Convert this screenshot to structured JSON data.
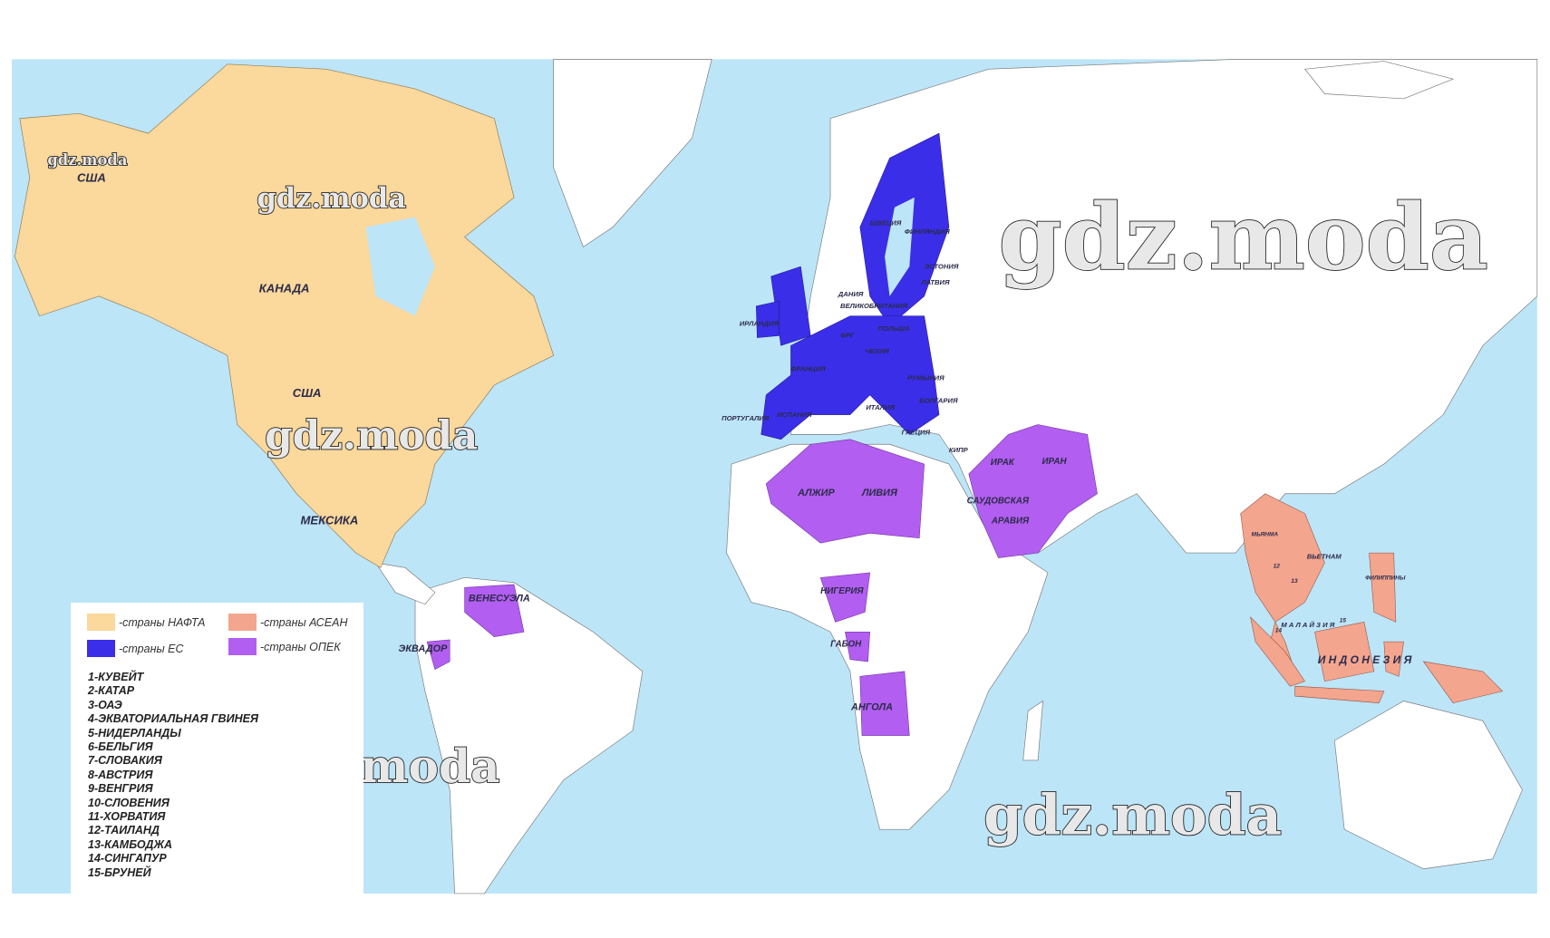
{
  "map": {
    "colors": {
      "sea": "#bde5f8",
      "land": "#ffffff",
      "nafta": "#fbd89b",
      "eu": "#3a2ee8",
      "asean": "#f4a58e",
      "opec": "#b25ef0"
    },
    "labels": {
      "usa_alaska": "США",
      "canada": "КАНАДА",
      "usa": "США",
      "mexico": "МЕКСИКА",
      "venezuela": "ВЕНЕСУЭЛА",
      "ecuador": "ЭКВАДОР",
      "algeria": "АЛЖИР",
      "libya": "ЛИВИЯ",
      "nigeria": "НИГЕРИЯ",
      "gabon": "ГАБОН",
      "angola": "АНГОЛА",
      "iraq": "ИРАК",
      "iran": "ИРАН",
      "saudi_1": "САУДОВСКАЯ",
      "saudi_2": "АРАВИЯ",
      "indonesia": "И Н Д О Н Е З И Я",
      "malaysia": "М А Л А Й З И Я",
      "vietnam": "ВЬЕТНАМ",
      "myanmar": "МЬЯНМА",
      "philippines": "ФИЛИППИНЫ",
      "n12": "12",
      "n13": "13",
      "n14": "14",
      "n15": "15",
      "uk": "ВЕЛИКОБРИТАНИЯ",
      "ireland": "ИРЛАНДИЯ",
      "portugal": "ПОРТУГАЛИЯ",
      "spain": "ИСПАНИЯ",
      "france": "ФРАНЦИЯ",
      "germany": "ФРГ",
      "poland": "ПОЛЬША",
      "czech": "ЧЕХИЯ",
      "romania": "РУМЫНИЯ",
      "bulgaria": "БОЛГАРИЯ",
      "greece": "ГРЕЦИЯ",
      "italy": "ИТАЛИЯ",
      "sweden": "ШВЕЦИЯ",
      "finland": "ФИНЛЯНДИЯ",
      "estonia": "ЭСТОНИЯ",
      "latvia": "ЛАТВИЯ",
      "denmark": "ДАНИЯ",
      "cyprus": "КИПР"
    },
    "watermark": "gdz.moda"
  },
  "legend": {
    "nafta": "-страны НАФТА",
    "asean": "-страны АСЕАН",
    "eu": "-страны ЕС",
    "opec": "-страны ОПЕК",
    "items": [
      "1-КУВЕЙТ",
      "2-КАТАР",
      "3-ОАЭ",
      "4-ЭКВАТОРИАЛЬНАЯ ГВИНЕЯ",
      "5-НИДЕРЛАНДЫ",
      "6-БЕЛЬГИЯ",
      "7-СЛОВАКИЯ",
      "8-АВСТРИЯ",
      "9-ВЕНГРИЯ",
      "10-СЛОВЕНИЯ",
      "11-ХОРВАТИЯ",
      "12-ТАИЛАНД",
      "13-КАМБОДЖА",
      "14-СИНГАПУР",
      "15-БРУНЕЙ"
    ]
  }
}
